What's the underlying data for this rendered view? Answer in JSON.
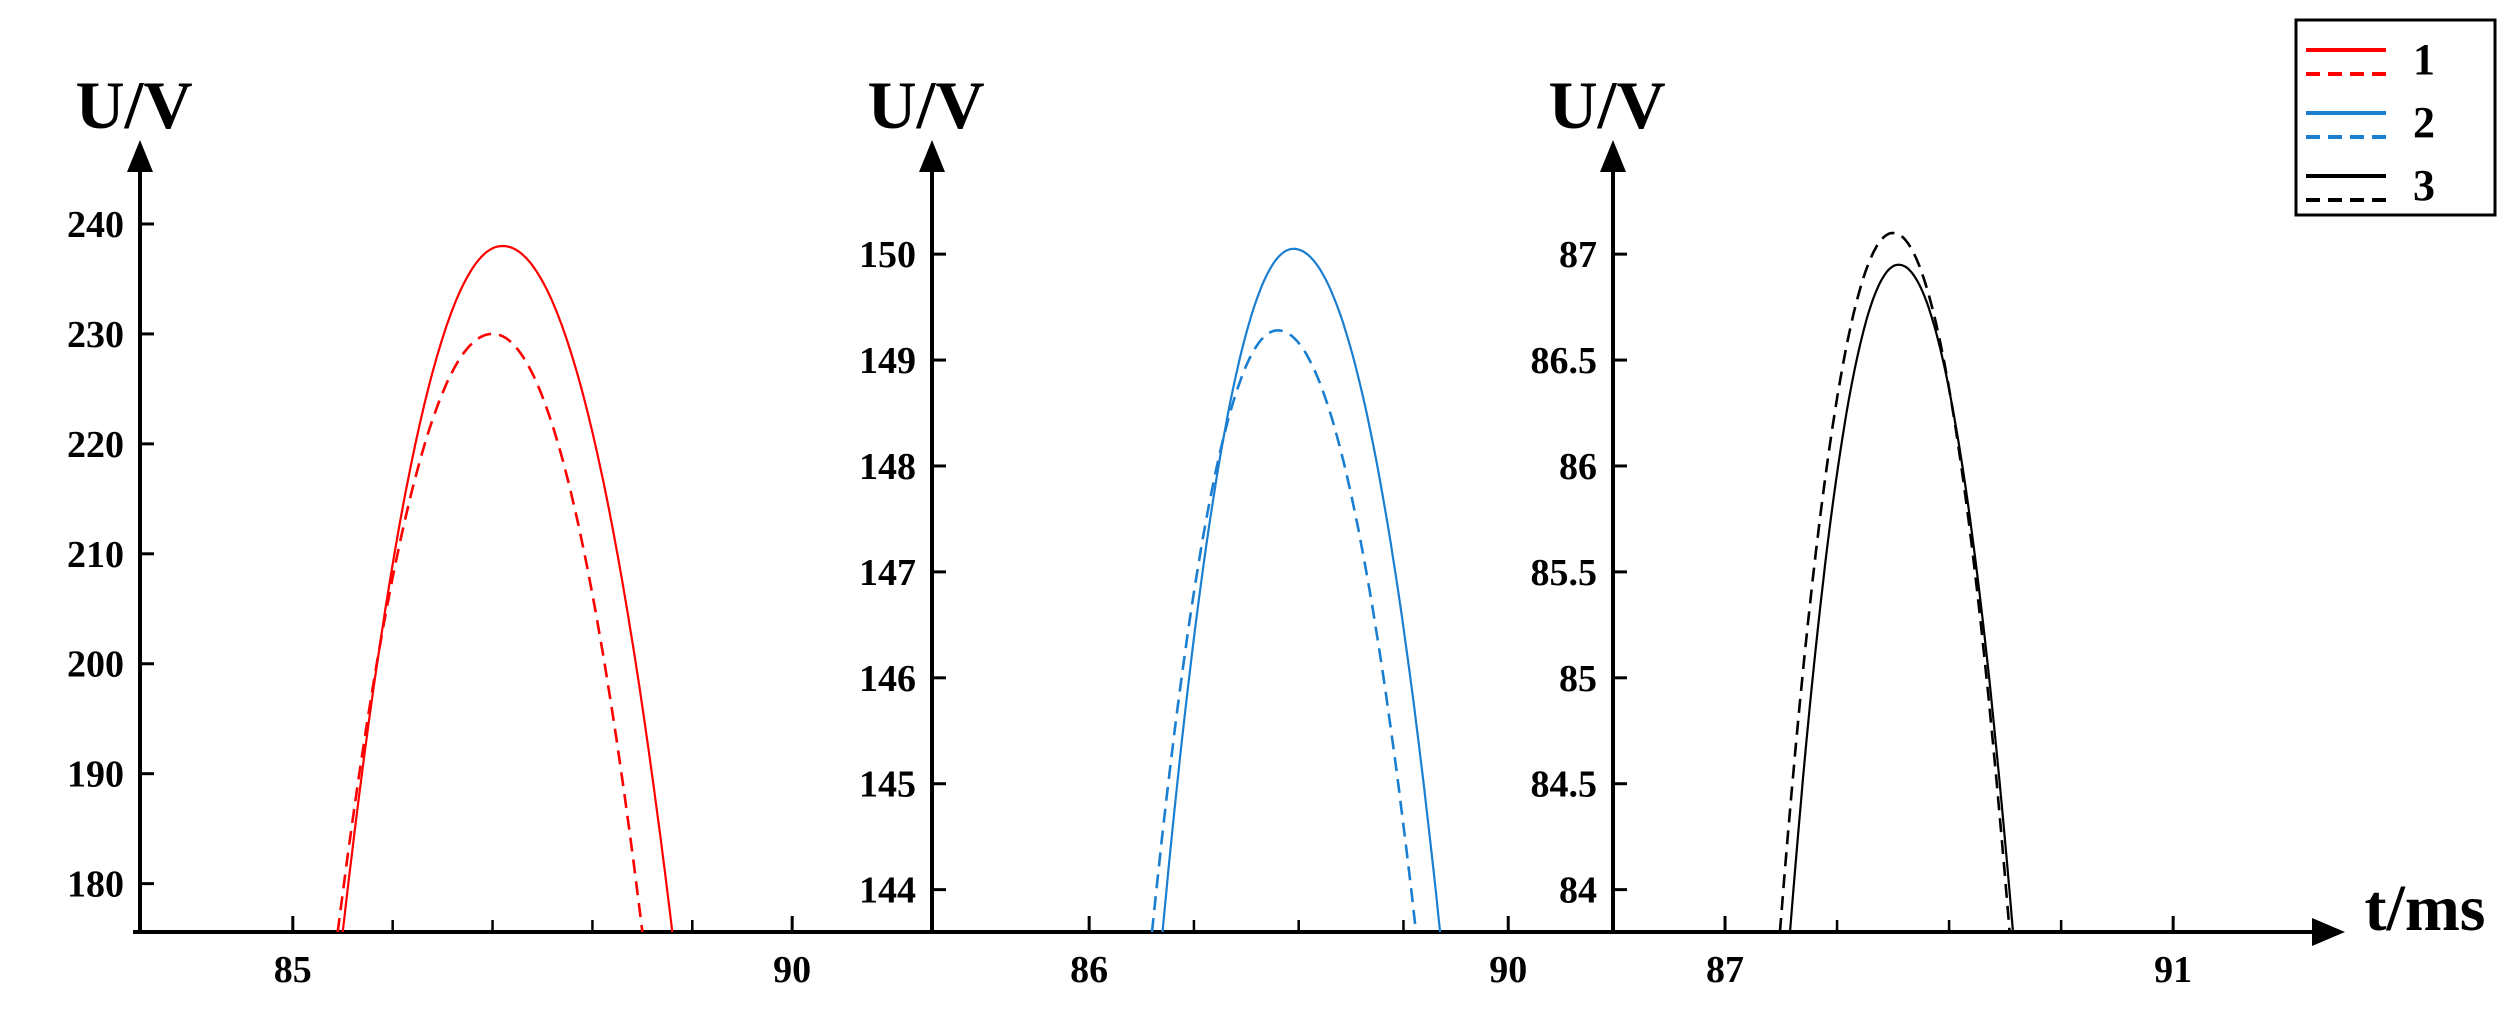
{
  "chart_data": [
    {
      "type": "line",
      "ylabel": "U/V",
      "xlabel": "",
      "color": "#ff0000",
      "xlim": [
        83.4,
        91.4
      ],
      "ylim": [
        175.6,
        244
      ],
      "xticks": [
        85,
        90
      ],
      "xminor": [
        86,
        87,
        88,
        89
      ],
      "yticks": [
        180,
        190,
        200,
        210,
        220,
        230,
        240
      ],
      "series": [
        {
          "name": "1",
          "style": "solid",
          "peak_x": 87.1,
          "peak_y": 238.0,
          "x_start": 85.5,
          "x_end": 88.8
        },
        {
          "name": "1",
          "style": "dashed",
          "peak_x": 87.0,
          "peak_y": 230.0,
          "x_start": 85.45,
          "x_end": 88.5
        }
      ]
    },
    {
      "type": "line",
      "ylabel": "U/V",
      "xlabel": "",
      "color": "#1a7fd0",
      "xlim": [
        84.5,
        91.0
      ],
      "ylim": [
        143.6,
        150.7
      ],
      "xticks": [
        86,
        90
      ],
      "xminor": [
        87,
        88,
        89
      ],
      "yticks": [
        144,
        145,
        146,
        147,
        148,
        149,
        150
      ],
      "series": [
        {
          "name": "2",
          "style": "solid",
          "peak_x": 87.95,
          "peak_y": 150.05,
          "x_start": 86.7,
          "x_end": 89.35
        },
        {
          "name": "2",
          "style": "dashed",
          "peak_x": 87.8,
          "peak_y": 149.28,
          "x_start": 86.6,
          "x_end": 89.12
        }
      ]
    },
    {
      "type": "line",
      "ylabel": "U/V",
      "xlabel": "t/ms",
      "color": "#000000",
      "xlim": [
        86.0,
        92.4
      ],
      "ylim": [
        83.8,
        87.35
      ],
      "xticks": [
        87,
        91
      ],
      "xminor": [
        88,
        89,
        90
      ],
      "yticks": [
        84,
        84.5,
        85,
        85.5,
        86,
        86.5,
        87
      ],
      "series": [
        {
          "name": "3",
          "style": "solid",
          "peak_x": 88.55,
          "peak_y": 86.95,
          "x_start": 87.58,
          "x_end": 89.57
        },
        {
          "name": "3",
          "style": "dashed",
          "peak_x": 88.5,
          "peak_y": 87.1,
          "x_start": 87.49,
          "x_end": 89.54
        }
      ]
    }
  ],
  "legend": {
    "position": "top-right",
    "entries": [
      {
        "label": "1",
        "color": "#ff0000"
      },
      {
        "label": "2",
        "color": "#1a7fd0"
      },
      {
        "label": "3",
        "color": "#000000"
      }
    ]
  }
}
